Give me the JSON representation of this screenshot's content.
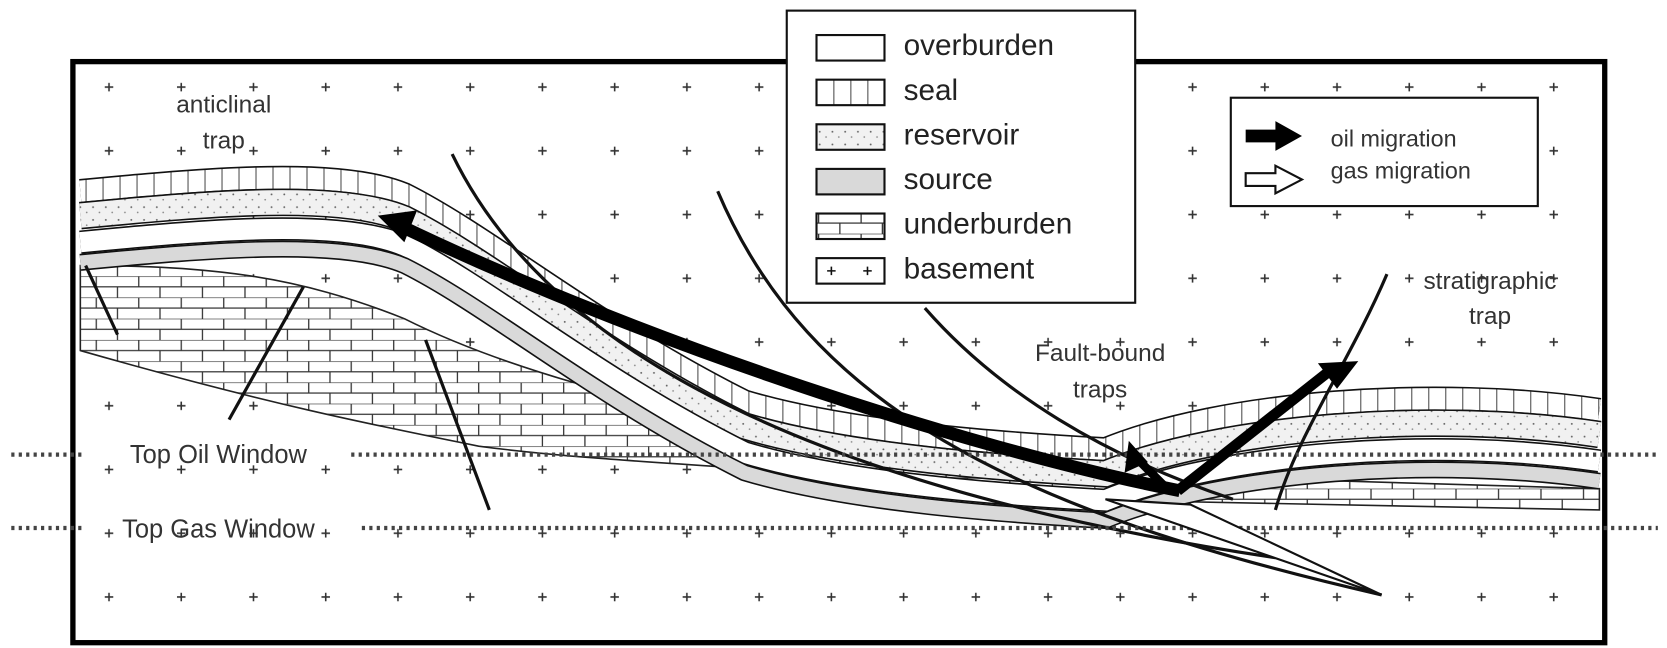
{
  "legend": {
    "items": [
      "overburden",
      "seal",
      "reservoir",
      "source",
      "underburden",
      "basement"
    ]
  },
  "migration_legend": {
    "items": [
      "oil migration",
      "gas migration"
    ]
  },
  "labels": {
    "anticlinal_trap": [
      "anticlinal",
      "trap"
    ],
    "top_oil_window": "Top Oil Window",
    "top_gas_window": "Top Gas Window",
    "fault_bound_traps": [
      "Fault-bound",
      "traps"
    ],
    "stratigraphic_trap": [
      "stratigraphic",
      "trap"
    ]
  }
}
